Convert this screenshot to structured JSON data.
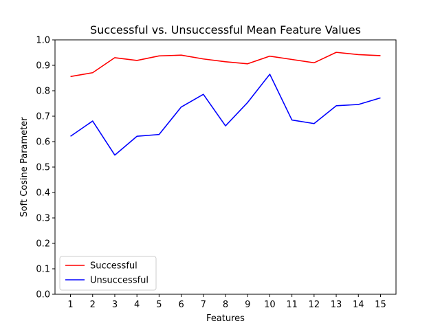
{
  "chart_data": {
    "type": "line",
    "title": "Successful vs. Unsuccessful Mean Feature Values",
    "xlabel": "Features",
    "ylabel": "Soft Cosine Parameter",
    "x": [
      1,
      2,
      3,
      4,
      5,
      6,
      7,
      8,
      9,
      10,
      11,
      12,
      13,
      14,
      15
    ],
    "x_tick_labels": [
      "1",
      "2",
      "3",
      "4",
      "5",
      "6",
      "7",
      "8",
      "9",
      "10",
      "11",
      "12",
      "13",
      "14",
      "15"
    ],
    "xlim": [
      0.3,
      15.7
    ],
    "ylim": [
      0.0,
      1.0
    ],
    "y_ticks": [
      0.0,
      0.1,
      0.2,
      0.3,
      0.4,
      0.5,
      0.6,
      0.7,
      0.8,
      0.9,
      1.0
    ],
    "y_tick_labels": [
      "0.0",
      "0.1",
      "0.2",
      "0.3",
      "0.4",
      "0.5",
      "0.6",
      "0.7",
      "0.8",
      "0.9",
      "1.0"
    ],
    "grid": false,
    "legend_position": "lower-left",
    "series": [
      {
        "name": "Successful",
        "color": "#ff0000",
        "values": [
          0.856,
          0.871,
          0.93,
          0.919,
          0.937,
          0.94,
          0.925,
          0.914,
          0.906,
          0.936,
          0.923,
          0.91,
          0.951,
          0.942,
          0.938
        ]
      },
      {
        "name": "Unsuccessful",
        "color": "#0000ff",
        "values": [
          0.621,
          0.681,
          0.547,
          0.621,
          0.628,
          0.736,
          0.786,
          0.662,
          0.754,
          0.865,
          0.685,
          0.671,
          0.741,
          0.746,
          0.772
        ]
      }
    ]
  }
}
